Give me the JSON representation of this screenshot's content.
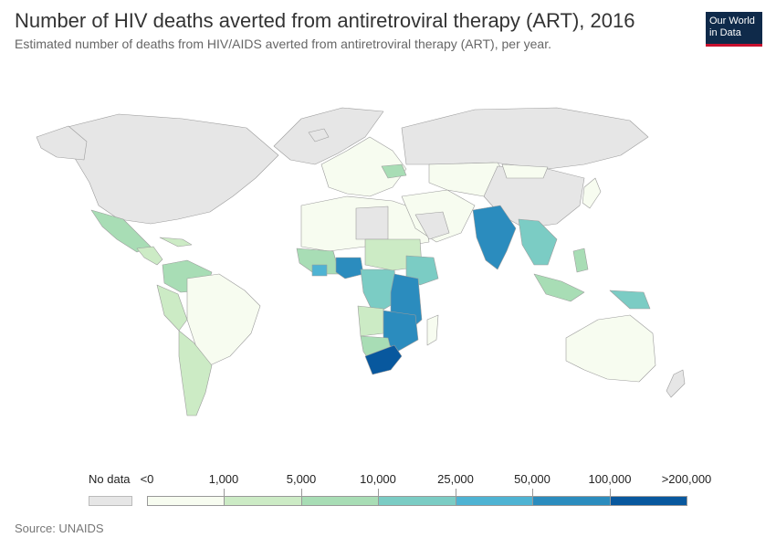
{
  "header": {
    "title": "Number of HIV deaths averted from antiretroviral therapy (ART), 2016",
    "subtitle": "Estimated number of deaths from HIV/AIDS averted from antiretroviral therapy (ART), per year.",
    "logo_line1": "Our World",
    "logo_line2": "in Data"
  },
  "legend": {
    "no_data_label": "No data",
    "ticks": [
      "<0",
      "1,000",
      "5,000",
      "10,000",
      "25,000",
      "50,000",
      "100,000",
      ">200,000"
    ],
    "colors": [
      "#f7fcf0",
      "#ccebc5",
      "#a8ddb5",
      "#7bccc4",
      "#4eb3d3",
      "#2b8cbe",
      "#08589e"
    ],
    "no_data_color": "#e6e6e6"
  },
  "source": "Source: UNAIDS",
  "colors": {
    "no_data": "#e6e6e6",
    "lowest": "#f7fcf0",
    "highest": "#08589e",
    "border": "#9c9c9c"
  }
}
